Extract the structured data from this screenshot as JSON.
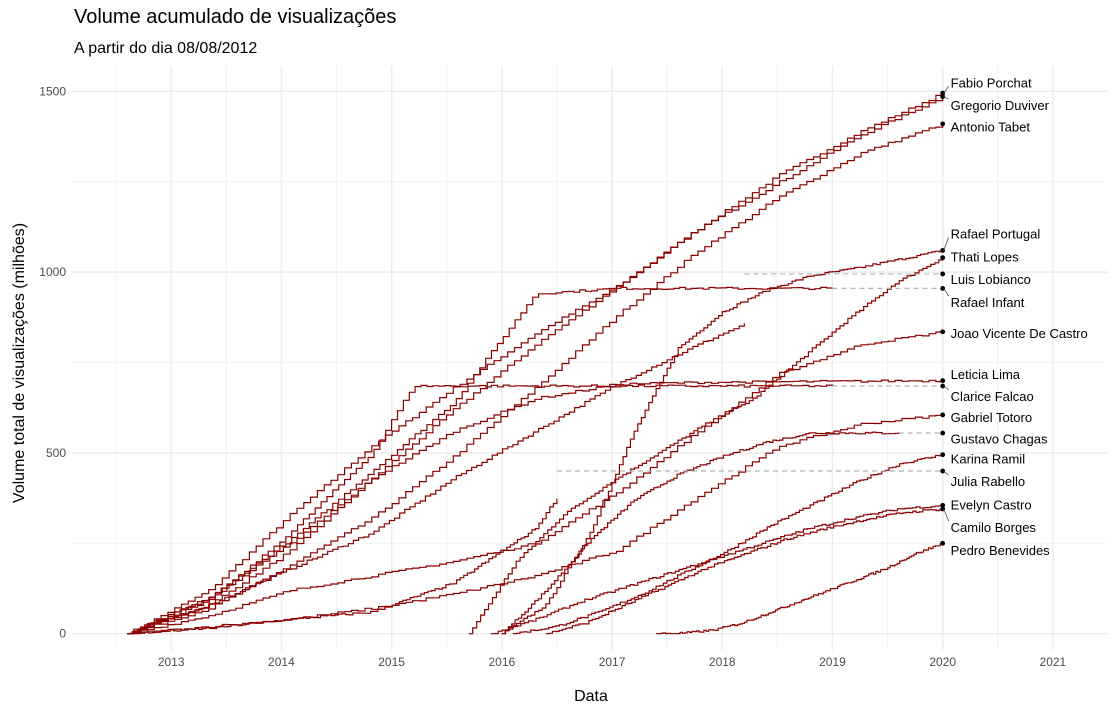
{
  "title": "Volume acumulado de visualizações",
  "subtitle": "A partir do dia 08/08/2012",
  "chart_data": {
    "type": "line",
    "title": "Volume acumulado de visualizações",
    "subtitle": "A partir do dia 08/08/2012",
    "xlabel": "Data",
    "ylabel": "Volume total de visualizações (milhões)",
    "xlim": [
      2012.1,
      2021.5
    ],
    "ylim": [
      -45,
      1570
    ],
    "x_ticks": [
      2013,
      2014,
      2015,
      2016,
      2017,
      2018,
      2019,
      2020,
      2021
    ],
    "y_ticks": [
      0,
      500,
      1000,
      1500
    ],
    "grid": true,
    "legend": "none",
    "line_color": "#8b0000",
    "dashed_color": "#b3b3b3",
    "series": [
      {
        "name": "Fabio Porchat",
        "start": 2012.6,
        "end_value": 1495,
        "final": 1495,
        "t": [
          [
            0,
            0
          ],
          [
            0.1,
            120
          ],
          [
            0.2,
            330
          ],
          [
            0.3,
            520
          ],
          [
            0.4,
            680
          ],
          [
            0.5,
            830
          ],
          [
            0.6,
            960
          ],
          [
            0.7,
            1120
          ],
          [
            0.8,
            1270
          ],
          [
            0.9,
            1390
          ],
          [
            1,
            1495
          ]
        ]
      },
      {
        "name": "Gregorio Duviver",
        "start": 2012.6,
        "end_value": 1485,
        "final": 1485,
        "t": [
          [
            0,
            0
          ],
          [
            0.1,
            80
          ],
          [
            0.2,
            230
          ],
          [
            0.3,
            430
          ],
          [
            0.4,
            620
          ],
          [
            0.5,
            800
          ],
          [
            0.6,
            960
          ],
          [
            0.7,
            1120
          ],
          [
            0.8,
            1250
          ],
          [
            0.9,
            1380
          ],
          [
            1,
            1485
          ]
        ]
      },
      {
        "name": "Antonio Tabet",
        "start": 2012.6,
        "end_value": 1410,
        "final": 1410,
        "t": [
          [
            0,
            0
          ],
          [
            0.1,
            70
          ],
          [
            0.2,
            190
          ],
          [
            0.3,
            320
          ],
          [
            0.4,
            490
          ],
          [
            0.5,
            680
          ],
          [
            0.6,
            880
          ],
          [
            0.7,
            1060
          ],
          [
            0.8,
            1210
          ],
          [
            0.9,
            1330
          ],
          [
            1,
            1410
          ]
        ]
      },
      {
        "name": "Rafael Portugal",
        "start": 2016.0,
        "end_value": 1060,
        "final": 1060,
        "t": [
          [
            0,
            0
          ],
          [
            0.1,
            80
          ],
          [
            0.2,
            280
          ],
          [
            0.3,
            560
          ],
          [
            0.4,
            790
          ],
          [
            0.5,
            890
          ],
          [
            0.6,
            950
          ],
          [
            0.7,
            990
          ],
          [
            0.8,
            1010
          ],
          [
            0.9,
            1035
          ],
          [
            1,
            1060
          ]
        ]
      },
      {
        "name": "Thati Lopes",
        "start": 2015.7,
        "end_value": 1040,
        "final": 1040,
        "t": [
          [
            0,
            0
          ],
          [
            0.1,
            200
          ],
          [
            0.2,
            330
          ],
          [
            0.3,
            420
          ],
          [
            0.4,
            500
          ],
          [
            0.5,
            580
          ],
          [
            0.6,
            650
          ],
          [
            0.7,
            760
          ],
          [
            0.8,
            870
          ],
          [
            0.9,
            970
          ],
          [
            1,
            1040
          ]
        ]
      },
      {
        "name": "Luis Lobianco",
        "start": 2012.6,
        "end_value": 995,
        "final": 995,
        "dash_from": 2018.2,
        "t": [
          [
            0,
            0
          ],
          [
            0.1,
            80
          ],
          [
            0.2,
            180
          ],
          [
            0.3,
            280
          ],
          [
            0.4,
            430
          ],
          [
            0.5,
            560
          ],
          [
            0.6,
            690
          ],
          [
            0.7,
            800
          ],
          [
            0.8,
            900
          ],
          [
            0.9,
            960
          ],
          [
            1,
            995
          ]
        ]
      },
      {
        "name": "Rafael Infant",
        "start": 2012.6,
        "end_value": 955,
        "final": 955,
        "dash_from": 2019.0,
        "t": [
          [
            0,
            0
          ],
          [
            0.1,
            100
          ],
          [
            0.2,
            260
          ],
          [
            0.3,
            450
          ],
          [
            0.4,
            640
          ],
          [
            0.5,
            940
          ],
          [
            0.6,
            955
          ],
          [
            1,
            955
          ]
        ]
      },
      {
        "name": "Joao Vicente De Castro",
        "start": 2012.6,
        "end_value": 835,
        "final": 835,
        "t": [
          [
            0,
            0
          ],
          [
            0.1,
            50
          ],
          [
            0.2,
            120
          ],
          [
            0.3,
            160
          ],
          [
            0.4,
            200
          ],
          [
            0.5,
            250
          ],
          [
            0.6,
            390
          ],
          [
            0.7,
            560
          ],
          [
            0.8,
            720
          ],
          [
            0.9,
            800
          ],
          [
            1,
            835
          ]
        ]
      },
      {
        "name": "Leticia Lima",
        "start": 2012.6,
        "end_value": 700,
        "final": 700,
        "t": [
          [
            0,
            0
          ],
          [
            0.1,
            100
          ],
          [
            0.2,
            250
          ],
          [
            0.3,
            430
          ],
          [
            0.4,
            560
          ],
          [
            0.5,
            650
          ],
          [
            0.6,
            690
          ],
          [
            0.7,
            695
          ],
          [
            1,
            700
          ]
        ]
      },
      {
        "name": "Clarice Falcao",
        "start": 2012.6,
        "end_value": 685,
        "final": 685,
        "dash_from": 2019.0,
        "t": [
          [
            0,
            0
          ],
          [
            0.1,
            90
          ],
          [
            0.2,
            280
          ],
          [
            0.3,
            500
          ],
          [
            0.35,
            685
          ],
          [
            1,
            685
          ]
        ]
      },
      {
        "name": "Gabriel Totoro",
        "start": 2012.6,
        "end_value": 605,
        "final": 605,
        "t": [
          [
            0,
            0
          ],
          [
            0.1,
            20
          ],
          [
            0.2,
            40
          ],
          [
            0.3,
            70
          ],
          [
            0.4,
            110
          ],
          [
            0.5,
            160
          ],
          [
            0.6,
            230
          ],
          [
            0.7,
            380
          ],
          [
            0.8,
            520
          ],
          [
            0.9,
            580
          ],
          [
            1,
            605
          ]
        ]
      },
      {
        "name": "Gustavo Chagas",
        "start": 2016.0,
        "end_value": 555,
        "final": 555,
        "dash_from": 2019.6,
        "t": [
          [
            0,
            0
          ],
          [
            0.1,
            120
          ],
          [
            0.2,
            260
          ],
          [
            0.3,
            370
          ],
          [
            0.4,
            440
          ],
          [
            0.5,
            490
          ],
          [
            0.6,
            530
          ],
          [
            0.7,
            555
          ],
          [
            1,
            555
          ]
        ]
      },
      {
        "name": "Karina Ramil",
        "start": 2016.1,
        "end_value": 495,
        "final": 495,
        "t": [
          [
            0,
            0
          ],
          [
            0.1,
            20
          ],
          [
            0.2,
            60
          ],
          [
            0.3,
            110
          ],
          [
            0.4,
            170
          ],
          [
            0.5,
            230
          ],
          [
            0.6,
            300
          ],
          [
            0.7,
            360
          ],
          [
            0.8,
            420
          ],
          [
            0.9,
            470
          ],
          [
            1,
            495
          ]
        ]
      },
      {
        "name": "Julia Rabello",
        "start": 2012.6,
        "end_value": 450,
        "final": 450,
        "dash_from": 2016.5,
        "t": [
          [
            0,
            0
          ],
          [
            0.1,
            15
          ],
          [
            0.2,
            40
          ],
          [
            0.3,
            60
          ],
          [
            0.4,
            140
          ],
          [
            0.5,
            290
          ],
          [
            0.55,
            450
          ],
          [
            1,
            450
          ]
        ]
      },
      {
        "name": "Evelyn Castro",
        "start": 2015.9,
        "end_value": 355,
        "final": 355,
        "t": [
          [
            0,
            0
          ],
          [
            0.1,
            40
          ],
          [
            0.2,
            90
          ],
          [
            0.3,
            130
          ],
          [
            0.4,
            170
          ],
          [
            0.5,
            210
          ],
          [
            0.6,
            250
          ],
          [
            0.7,
            290
          ],
          [
            0.8,
            320
          ],
          [
            0.9,
            345
          ],
          [
            1,
            355
          ]
        ]
      },
      {
        "name": "Camilo Borges",
        "start": 2016.4,
        "end_value": 345,
        "final": 345,
        "t": [
          [
            0,
            0
          ],
          [
            0.1,
            30
          ],
          [
            0.2,
            80
          ],
          [
            0.3,
            130
          ],
          [
            0.4,
            180
          ],
          [
            0.5,
            220
          ],
          [
            0.6,
            260
          ],
          [
            0.7,
            290
          ],
          [
            0.8,
            315
          ],
          [
            0.9,
            335
          ],
          [
            1,
            345
          ]
        ]
      },
      {
        "name": "Pedro Benevides",
        "start": 2017.4,
        "end_value": 250,
        "final": 250,
        "t": [
          [
            0,
            0
          ],
          [
            0.1,
            2
          ],
          [
            0.2,
            10
          ],
          [
            0.3,
            30
          ],
          [
            0.4,
            60
          ],
          [
            0.5,
            90
          ],
          [
            0.6,
            120
          ],
          [
            0.7,
            150
          ],
          [
            0.8,
            180
          ],
          [
            0.9,
            220
          ],
          [
            1,
            250
          ]
        ]
      }
    ],
    "end_x": 2020.0,
    "labels": [
      {
        "text": "Fabio Porchat",
        "label_value": 1525
      },
      {
        "text": "Gregorio Duviver",
        "label_value": 1462
      },
      {
        "text": "Antonio Tabet",
        "label_value": 1403
      },
      {
        "text": "Rafael Portugal",
        "label_value": 1107
      },
      {
        "text": "Thati Lopes",
        "label_value": 1043
      },
      {
        "text": "Luis Lobianco",
        "label_value": 981
      },
      {
        "text": "Rafael Infant",
        "label_value": 917
      },
      {
        "text": "Joao Vicente De Castro",
        "label_value": 831
      },
      {
        "text": "Leticia Lima",
        "label_value": 718
      },
      {
        "text": "Clarice Falcao",
        "label_value": 658
      },
      {
        "text": "Gabriel Totoro",
        "label_value": 600
      },
      {
        "text": "Gustavo Chagas",
        "label_value": 540
      },
      {
        "text": "Karina Ramil",
        "label_value": 484
      },
      {
        "text": "Julia Rabello",
        "label_value": 422
      },
      {
        "text": "Evelyn Castro",
        "label_value": 358
      },
      {
        "text": "Camilo Borges",
        "label_value": 295
      },
      {
        "text": "Pedro Benevides",
        "label_value": 232
      }
    ]
  }
}
